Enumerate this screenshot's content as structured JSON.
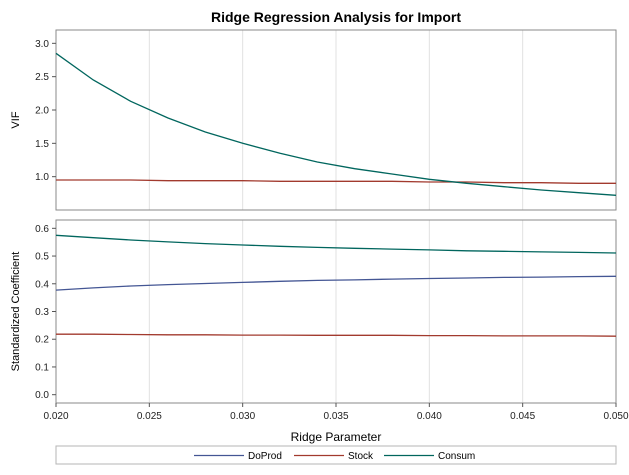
{
  "chart_data": {
    "type": "line",
    "title": "Ridge Regression Analysis for Import",
    "xlabel": "Ridge Parameter",
    "xlim": [
      0.02,
      0.05
    ],
    "xticks": [
      "0.020",
      "0.025",
      "0.030",
      "0.035",
      "0.040",
      "0.045",
      "0.050"
    ],
    "grid": "vertical",
    "legend_placement": "bottom",
    "x": [
      0.02,
      0.022,
      0.024,
      0.026,
      0.028,
      0.03,
      0.032,
      0.034,
      0.036,
      0.038,
      0.04,
      0.042,
      0.044,
      0.046,
      0.048,
      0.05
    ],
    "panels": [
      {
        "ylabel": "VIF",
        "ylim": [
          0.5,
          3.2
        ],
        "yticks": [
          "1.0",
          "1.5",
          "2.0",
          "2.5",
          "3.0"
        ],
        "series": [
          {
            "name": "Stock",
            "color": "#a23a2e",
            "values": [
              0.95,
              0.95,
              0.95,
              0.94,
              0.94,
              0.94,
              0.93,
              0.93,
              0.93,
              0.93,
              0.92,
              0.92,
              0.91,
              0.91,
              0.9,
              0.9
            ]
          },
          {
            "name": "Consum",
            "color": "#01665e",
            "values": [
              2.85,
              2.45,
              2.13,
              1.88,
              1.67,
              1.5,
              1.35,
              1.22,
              1.12,
              1.04,
              0.96,
              0.9,
              0.85,
              0.8,
              0.76,
              0.72
            ]
          }
        ]
      },
      {
        "ylabel": "Standardized Coefficient",
        "ylim": [
          -0.03,
          0.63
        ],
        "yticks": [
          "0.0",
          "0.1",
          "0.2",
          "0.3",
          "0.4",
          "0.5",
          "0.6"
        ],
        "series": [
          {
            "name": "DoProd",
            "color": "#445694",
            "values": [
              0.377,
              0.385,
              0.392,
              0.397,
              0.401,
              0.405,
              0.409,
              0.412,
              0.414,
              0.417,
              0.419,
              0.421,
              0.423,
              0.424,
              0.426,
              0.427
            ]
          },
          {
            "name": "Stock",
            "color": "#a23a2e",
            "values": [
              0.218,
              0.218,
              0.217,
              0.216,
              0.216,
              0.215,
              0.215,
              0.214,
              0.214,
              0.214,
              0.213,
              0.213,
              0.212,
              0.212,
              0.212,
              0.211
            ]
          },
          {
            "name": "Consum",
            "color": "#01665e",
            "values": [
              0.575,
              0.566,
              0.558,
              0.551,
              0.545,
              0.54,
              0.535,
              0.531,
              0.528,
              0.525,
              0.522,
              0.519,
              0.517,
              0.515,
              0.513,
              0.511
            ]
          }
        ]
      }
    ],
    "legend": [
      {
        "name": "DoProd",
        "color": "#445694"
      },
      {
        "name": "Stock",
        "color": "#a23a2e"
      },
      {
        "name": "Consum",
        "color": "#01665e"
      }
    ]
  }
}
